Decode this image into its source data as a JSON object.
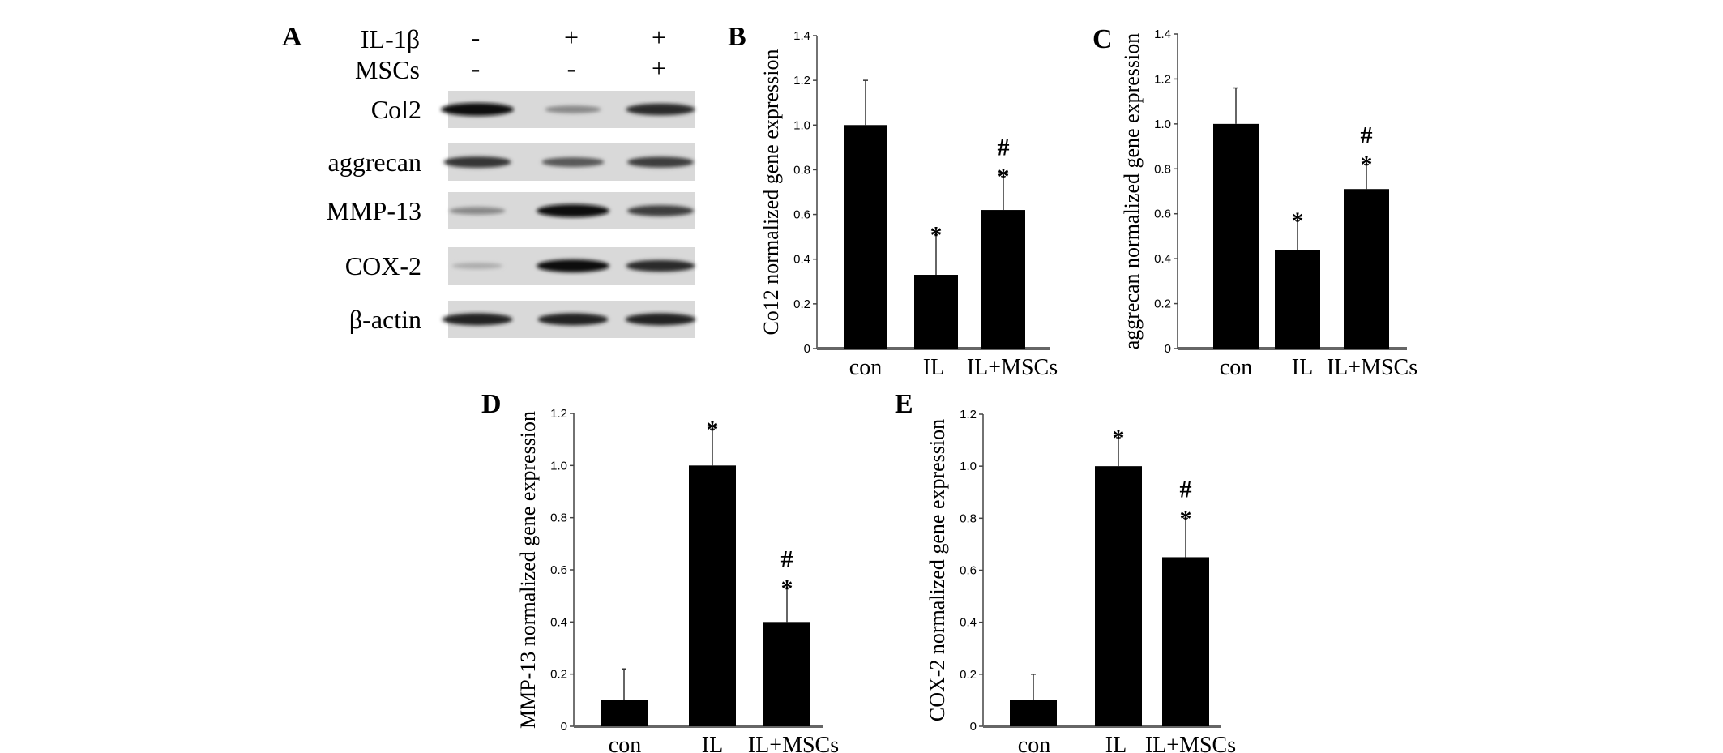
{
  "panel_a": {
    "letter": "A",
    "treatments": [
      {
        "name": "IL-1β",
        "lanes": [
          "-",
          "+",
          "+"
        ]
      },
      {
        "name": "MSCs",
        "lanes": [
          "-",
          "-",
          "+"
        ]
      }
    ],
    "blots": [
      {
        "label": "Col2",
        "intensity": [
          1.0,
          0.35,
          0.85
        ]
      },
      {
        "label": "aggrecan",
        "intensity": [
          0.8,
          0.6,
          0.75
        ]
      },
      {
        "label": "MMP-13",
        "intensity": [
          0.35,
          1.0,
          0.75
        ]
      },
      {
        "label": "COX-2",
        "intensity": [
          0.15,
          1.0,
          0.85
        ]
      },
      {
        "label": "β-actin",
        "intensity": [
          0.9,
          0.9,
          0.9
        ]
      }
    ]
  },
  "chart_data": [
    {
      "letter": "B",
      "type": "bar",
      "categories": [
        "con",
        "IL",
        "IL+MSCs"
      ],
      "values": [
        1.0,
        0.33,
        0.62
      ],
      "errors": [
        0.2,
        0.18,
        0.15
      ],
      "marks": [
        [],
        [
          "*"
        ],
        [
          "*",
          "#"
        ]
      ],
      "ylabel": "Co12 normalized gene expression",
      "ylim": [
        0,
        1.4
      ],
      "yticks": [
        "0",
        "0.2",
        "0.4",
        "0.6",
        "0.8",
        "1.0",
        "1.2",
        "1.4"
      ]
    },
    {
      "letter": "C",
      "type": "bar",
      "categories": [
        "con",
        "IL",
        "IL+MSCs"
      ],
      "values": [
        1.0,
        0.44,
        0.71
      ],
      "errors": [
        0.16,
        0.13,
        0.11
      ],
      "marks": [
        [],
        [
          "*"
        ],
        [
          "*",
          "#"
        ]
      ],
      "ylabel": "aggrecan normalized gene expression",
      "ylim": [
        0,
        1.4
      ],
      "yticks": [
        "0",
        "0.2",
        "0.4",
        "0.6",
        "0.8",
        "1.0",
        "1.2",
        "1.4"
      ]
    },
    {
      "letter": "D",
      "type": "bar",
      "categories": [
        "con",
        "IL",
        "IL+MSCs"
      ],
      "values": [
        0.1,
        1.0,
        0.4
      ],
      "errors": [
        0.12,
        0.14,
        0.13
      ],
      "marks": [
        [],
        [
          "*"
        ],
        [
          "*",
          "#"
        ]
      ],
      "ylabel": "MMP-13 normalized gene expression",
      "ylim": [
        0,
        1.2
      ],
      "yticks": [
        "0",
        "0.2",
        "0.4",
        "0.6",
        "0.8",
        "1.0",
        "1.2"
      ]
    },
    {
      "letter": "E",
      "type": "bar",
      "categories": [
        "con",
        "IL",
        "IL+MSCs"
      ],
      "values": [
        0.1,
        1.0,
        0.65
      ],
      "errors": [
        0.1,
        0.11,
        0.15
      ],
      "marks": [
        [],
        [
          "*"
        ],
        [
          "*",
          "#"
        ]
      ],
      "ylabel": "COX-2 normalized gene expression",
      "ylim": [
        0,
        1.2
      ],
      "yticks": [
        "0",
        "0.2",
        "0.4",
        "0.6",
        "0.8",
        "1.0",
        "1.2"
      ]
    }
  ]
}
